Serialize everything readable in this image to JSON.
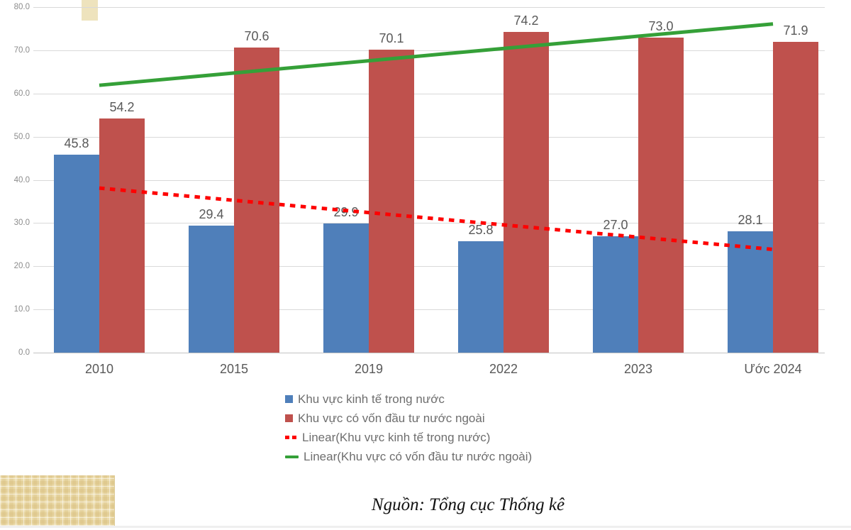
{
  "chart_data": {
    "type": "bar",
    "categories": [
      "2010",
      "2015",
      "2019",
      "2022",
      "2023",
      "Ước 2024"
    ],
    "series": [
      {
        "name": "Khu vực kinh tế trong nước",
        "type": "bar",
        "color": "#4f7fba",
        "values": [
          45.8,
          29.4,
          29.9,
          25.8,
          27.0,
          28.1
        ],
        "labels": [
          "45.8",
          "29.4",
          "29.9",
          "25.8",
          "27.0",
          "28.1"
        ],
        "marker": "square"
      },
      {
        "name": "Khu vực có vốn đầu tư nước ngoài",
        "type": "bar",
        "color": "#bf514d",
        "values": [
          54.2,
          70.6,
          70.1,
          74.2,
          73.0,
          71.9
        ],
        "labels": [
          "54.2",
          "70.6",
          "70.1",
          "74.2",
          "73.0",
          "71.9"
        ],
        "marker": "square"
      },
      {
        "name": "Linear(Khu vực kinh tế trong nước)",
        "type": "trendline",
        "line_style": "dotted",
        "color": "#fe0000",
        "trend_endpoints": [
          38.1,
          23.9
        ],
        "marker": "dashed-line"
      },
      {
        "name": "Linear(Khu vực có vốn đầu tư nước ngoài)",
        "type": "trendline",
        "line_style": "solid",
        "color": "#35a038",
        "trend_endpoints": [
          61.9,
          76.1
        ],
        "marker": "solid-line"
      }
    ],
    "y_axis": {
      "min": 0,
      "max": 80,
      "step": 10,
      "tick_labels": [
        "0.0",
        "10.0",
        "20.0",
        "30.0",
        "40.0",
        "50.0",
        "60.0",
        "70.0",
        "80.0"
      ]
    },
    "grid": true,
    "legend_position": "bottom-center"
  },
  "source_note": "Nguồn: Tổng cục Thống kê"
}
